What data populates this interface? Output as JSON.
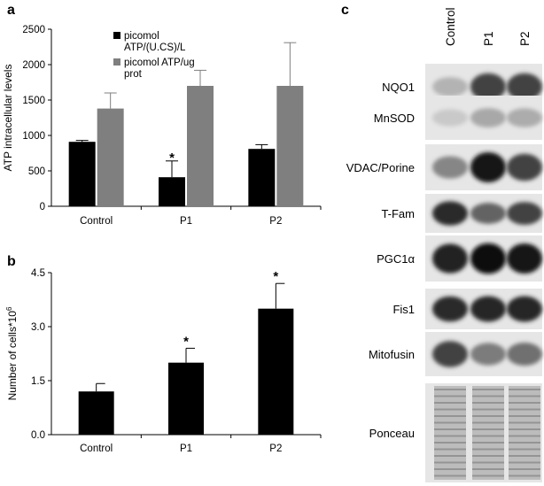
{
  "panels": {
    "a": "a",
    "b": "b",
    "c": "c"
  },
  "chart_data": [
    {
      "panel": "a",
      "type": "bar",
      "categories": [
        "Control",
        "P1",
        "P2"
      ],
      "ylabel": "ATP intracellular  levels",
      "ylim": [
        0,
        2500
      ],
      "yticks": [
        "0",
        "500",
        "1000",
        "1500",
        "2000",
        "2500"
      ],
      "grid": false,
      "legend_position": "top-left",
      "series": [
        {
          "name": "picomol ATP/(U.CS)/L",
          "legend_lines": [
            "picomol",
            "ATP/(U.CS)/L"
          ],
          "color": "#000000",
          "values": [
            910,
            410,
            810
          ],
          "errors": [
            20,
            230,
            60
          ]
        },
        {
          "name": "picomol ATP/ug prot",
          "legend_lines": [
            "picomol ATP/ug",
            "prot"
          ],
          "color": "#7f7f7f",
          "values": [
            1380,
            1700,
            1700
          ],
          "errors": [
            220,
            220,
            610
          ]
        }
      ],
      "annotations": [
        {
          "category": "P1",
          "series": 0,
          "text": "*"
        }
      ]
    },
    {
      "panel": "b",
      "type": "bar",
      "categories": [
        "Control",
        "P1",
        "P2"
      ],
      "ylabel": "Number of cells*10",
      "ylabel_superscript": "6",
      "ylim": [
        0,
        4.5
      ],
      "yticks": [
        "0.0",
        "1.5",
        "3.0",
        "4.5"
      ],
      "grid": false,
      "series": [
        {
          "color": "#000000",
          "values": [
            1.2,
            2.0,
            3.5
          ],
          "errors": [
            0.22,
            0.4,
            0.7
          ]
        }
      ],
      "annotations": [
        {
          "category": "P1",
          "series": 0,
          "text": "*"
        },
        {
          "category": "P2",
          "series": 0,
          "text": "*"
        }
      ]
    }
  ],
  "blot": {
    "lanes": [
      "Control",
      "P1",
      "P2"
    ],
    "rows": [
      {
        "label": "NQO1",
        "intensity": [
          0.25,
          0.75,
          0.75
        ]
      },
      {
        "label": "MnSOD",
        "intensity": [
          0.15,
          0.3,
          0.28
        ]
      },
      {
        "label": "VDAC/Porine",
        "intensity": [
          0.45,
          0.95,
          0.75
        ]
      },
      {
        "label": "T-Fam",
        "intensity": [
          0.85,
          0.6,
          0.75
        ]
      },
      {
        "label": "PGC1α",
        "intensity": [
          0.9,
          0.98,
          0.95
        ]
      },
      {
        "label": "Fis1",
        "intensity": [
          0.85,
          0.88,
          0.88
        ]
      },
      {
        "label": "Mitofusin",
        "intensity": [
          0.75,
          0.5,
          0.55
        ]
      },
      {
        "label": "Ponceau",
        "intensity": [
          0.35,
          0.35,
          0.35
        ]
      }
    ]
  }
}
